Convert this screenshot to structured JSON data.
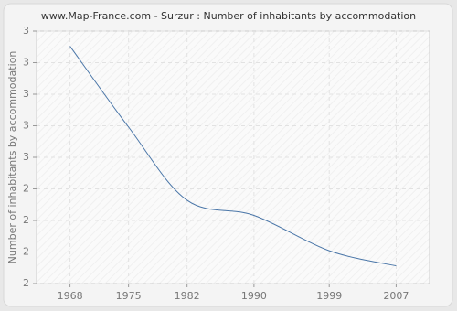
{
  "chart_data": {
    "type": "line",
    "title": "www.Map-France.com - Surzur : Number of inhabitants by accommodation",
    "y_label": "Number of inhabitants by accommodation",
    "x": [
      1968,
      1975,
      1982,
      1990,
      1999,
      2007
    ],
    "series": [
      {
        "name": "Surzur",
        "color": "#4a76a8",
        "values": [
          2.94,
          2.62,
          2.33,
          2.27,
          2.13,
          2.07
        ]
      }
    ],
    "xlim": [
      1964,
      2011
    ],
    "xticks": [
      1968,
      1975,
      1982,
      1990,
      1999,
      2007
    ],
    "ylim": [
      2,
      3
    ],
    "yticks": [
      {
        "value": 2,
        "label": "2"
      },
      {
        "value": 2.125,
        "label": "2"
      },
      {
        "value": 2.25,
        "label": "2"
      },
      {
        "value": 2.375,
        "label": "2"
      },
      {
        "value": 2.5,
        "label": "3"
      },
      {
        "value": 2.625,
        "label": "3"
      },
      {
        "value": 2.75,
        "label": "3"
      },
      {
        "value": 2.875,
        "label": "3"
      },
      {
        "value": 3,
        "label": "3"
      }
    ],
    "grid": true
  }
}
